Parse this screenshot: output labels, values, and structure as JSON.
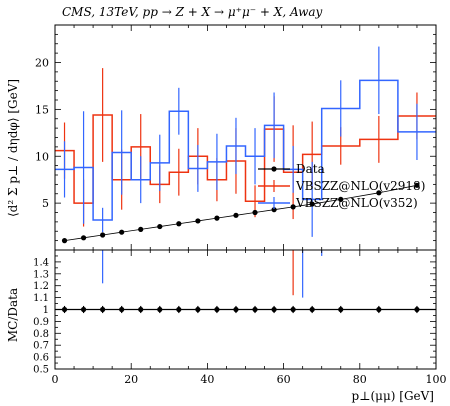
{
  "chart_data": [
    {
      "panel": "main",
      "type": "line",
      "title": "CMS, 13TeV, pp → Z + X → μ⁺μ⁻ + X, Away",
      "ylabel": "⟨d² Σ p⊥ / dηdφ⟩ [GeV]",
      "xlabel": "",
      "xlim": [
        0,
        100
      ],
      "ylim": [
        0,
        24
      ],
      "y_ticks": [
        "5",
        "10",
        "15",
        "20"
      ],
      "grid": false,
      "legend_position": "center-right",
      "colors": {
        "data": "#000000",
        "v2918": "#ee3311",
        "v352": "#3366ff"
      },
      "series": [
        {
          "name": "Data",
          "style": "points",
          "x": [
            2.5,
            7.5,
            12.5,
            17.5,
            22.5,
            27.5,
            32.5,
            37.5,
            42.5,
            47.5,
            52.5,
            57.5,
            62.5,
            67.5,
            75,
            85,
            95
          ],
          "y": [
            1.0,
            1.3,
            1.6,
            1.9,
            2.2,
            2.5,
            2.8,
            3.1,
            3.4,
            3.7,
            4.0,
            4.3,
            4.6,
            4.9,
            5.4,
            6.1,
            6.9
          ],
          "yerr": [
            0.05,
            0.05,
            0.05,
            0.05,
            0.05,
            0.05,
            0.05,
            0.05,
            0.05,
            0.05,
            0.05,
            0.05,
            0.05,
            0.05,
            0.08,
            0.1,
            0.12
          ]
        },
        {
          "name": "VBSZZ@NLO(v2918)",
          "style": "step",
          "edges": [
            0,
            5,
            10,
            15,
            20,
            25,
            30,
            35,
            40,
            45,
            50,
            55,
            60,
            65,
            70,
            80,
            90,
            100
          ],
          "values": [
            10.6,
            5.0,
            14.4,
            7.5,
            11.0,
            7.0,
            8.3,
            10.0,
            7.5,
            9.5,
            5.2,
            12.9,
            8.3,
            10.2,
            11.1,
            11.8,
            14.3
          ],
          "err": [
            3.0,
            2.5,
            5.0,
            3.2,
            3.5,
            2.0,
            2.5,
            3.0,
            2.3,
            3.5,
            1.7,
            3.5,
            5.0,
            3.5,
            2.0,
            2.5,
            2.5
          ]
        },
        {
          "name": "VBSZZ@NLO(v352)",
          "style": "step",
          "edges": [
            0,
            5,
            10,
            15,
            20,
            25,
            30,
            35,
            40,
            45,
            50,
            55,
            60,
            65,
            70,
            80,
            90,
            100
          ],
          "values": [
            8.6,
            8.8,
            3.2,
            10.4,
            7.5,
            9.3,
            14.8,
            8.7,
            9.4,
            11.1,
            10.0,
            13.3,
            8.6,
            5.4,
            15.1,
            18.1,
            12.6
          ],
          "err": [
            3.0,
            6.0,
            1.3,
            4.5,
            2.5,
            3.0,
            2.5,
            2.5,
            3.0,
            3.0,
            3.0,
            3.5,
            2.5,
            4.0,
            3.0,
            3.6,
            3.0
          ]
        }
      ],
      "legend": [
        "Data",
        "VBSZZ@NLO(v2918)",
        "VBSZZ@NLO(v352)"
      ]
    },
    {
      "panel": "ratio",
      "type": "line",
      "ylabel": "MC/Data",
      "xlabel": "p⊥(μμ) [GeV]",
      "xlim": [
        0,
        100
      ],
      "ylim": [
        0.5,
        1.5
      ],
      "x_ticks": [
        "0",
        "20",
        "40",
        "60",
        "80",
        "100"
      ],
      "y_ticks": [
        "0.5",
        "0.6",
        "0.7",
        "0.8",
        "0.9",
        "1",
        "1.1",
        "1.2",
        "1.3",
        "1.4"
      ],
      "series": [
        {
          "name": "Data",
          "x": [
            2.5,
            7.5,
            12.5,
            17.5,
            22.5,
            27.5,
            32.5,
            37.5,
            42.5,
            47.5,
            52.5,
            57.5,
            62.5,
            67.5,
            75,
            85,
            95
          ],
          "y": [
            1,
            1,
            1,
            1,
            1,
            1,
            1,
            1,
            1,
            1,
            1,
            1,
            1,
            1,
            1,
            1,
            1
          ],
          "yerr": [
            0.03,
            0.03,
            0.03,
            0.03,
            0.03,
            0.03,
            0.03,
            0.03,
            0.03,
            0.03,
            0.03,
            0.03,
            0.03,
            0.03,
            0.03,
            0.03,
            0.03
          ]
        }
      ],
      "visible_ratio_segments": [
        {
          "series": "VBSZZ@NLO(v2918)",
          "x": 62.5,
          "y_low": 1.12,
          "y_high": 1.5
        },
        {
          "series": "VBSZZ@NLO(v352)",
          "x": 12.5,
          "y_low": 1.22,
          "y_high": 1.5
        },
        {
          "series": "VBSZZ@NLO(v352)",
          "x": 65,
          "y_low": 1.1,
          "y_high": 1.5
        },
        {
          "series": "VBSZZ@NLO(v352)",
          "x": 70,
          "y_low": 1.45,
          "y_high": 1.5
        }
      ]
    }
  ]
}
